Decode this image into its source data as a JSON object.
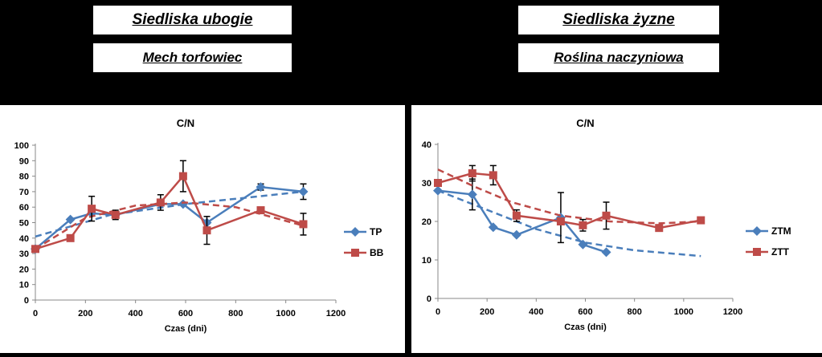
{
  "header": {
    "left_title": "Siedliska ubogie",
    "left_subtitle": "Mech torfowiec",
    "right_title": "Siedliska żyzne",
    "right_subtitle": "Roślina naczyniowa"
  },
  "colors": {
    "blue": "#4a7ebb",
    "red": "#be4b48"
  },
  "chart_data": [
    {
      "type": "line",
      "title": "C/N",
      "xlabel": "Czas (dni)",
      "ylabel": "",
      "xlim": [
        0,
        1200
      ],
      "ylim": [
        0,
        100
      ],
      "xticks": [
        0,
        200,
        400,
        600,
        800,
        1000,
        1200
      ],
      "yticks": [
        0,
        10,
        20,
        30,
        40,
        50,
        60,
        70,
        80,
        90,
        100
      ],
      "legend": "right",
      "series": [
        {
          "name": "TP",
          "color": "#4a7ebb",
          "marker": "diamond",
          "x": [
            0,
            140,
            225,
            320,
            500,
            590,
            685,
            900,
            1070
          ],
          "y": [
            33,
            52,
            56,
            55,
            62,
            62,
            50,
            73,
            70
          ],
          "err": [
            null,
            null,
            null,
            null,
            null,
            null,
            null,
            2,
            5
          ],
          "trend": [
            [
              0,
              41
            ],
            [
              300,
              55
            ],
            [
              600,
              62
            ],
            [
              1070,
              70
            ]
          ]
        },
        {
          "name": "BB",
          "color": "#be4b48",
          "marker": "square",
          "x": [
            0,
            140,
            225,
            320,
            500,
            590,
            685,
            900,
            1070
          ],
          "y": [
            33,
            40,
            59,
            55,
            63,
            80,
            45,
            58,
            49
          ],
          "err": [
            null,
            null,
            8,
            3,
            5,
            10,
            9,
            null,
            7
          ],
          "trend": [
            [
              0,
              33
            ],
            [
              200,
              53
            ],
            [
              400,
              61
            ],
            [
              600,
              63
            ],
            [
              800,
              60
            ],
            [
              1070,
              48
            ]
          ]
        }
      ]
    },
    {
      "type": "line",
      "title": "C/N",
      "xlabel": "Czas (dni)",
      "ylabel": "",
      "xlim": [
        0,
        1200
      ],
      "ylim": [
        0,
        40
      ],
      "xticks": [
        0,
        200,
        400,
        600,
        800,
        1000,
        1200
      ],
      "yticks": [
        0,
        10,
        20,
        30,
        40
      ],
      "legend": "right",
      "series": [
        {
          "name": "ZTM",
          "color": "#4a7ebb",
          "marker": "diamond",
          "x": [
            0,
            140,
            225,
            320,
            500,
            590,
            685
          ],
          "y": [
            28,
            27,
            18.5,
            16.5,
            21,
            14,
            12
          ],
          "err": [
            null,
            4,
            null,
            null,
            6.5,
            null,
            null
          ],
          "trend": [
            [
              0,
              28
            ],
            [
              200,
              23
            ],
            [
              400,
              18
            ],
            [
              600,
              14.5
            ],
            [
              800,
              12.5
            ],
            [
              1070,
              11
            ]
          ]
        },
        {
          "name": "ZTT",
          "color": "#be4b48",
          "marker": "square",
          "x": [
            0,
            140,
            225,
            320,
            500,
            590,
            685,
            900,
            1070
          ],
          "y": [
            30,
            32.5,
            32,
            21.5,
            20,
            19,
            21.5,
            18.3,
            20.3
          ],
          "err": [
            null,
            2,
            2.5,
            1.5,
            null,
            1.5,
            3.5,
            null,
            null
          ],
          "trend": [
            [
              0,
              33.5
            ],
            [
              150,
              29
            ],
            [
              300,
              25
            ],
            [
              500,
              21.5
            ],
            [
              700,
              20
            ],
            [
              900,
              19.5
            ],
            [
              1070,
              20
            ]
          ]
        }
      ]
    }
  ]
}
